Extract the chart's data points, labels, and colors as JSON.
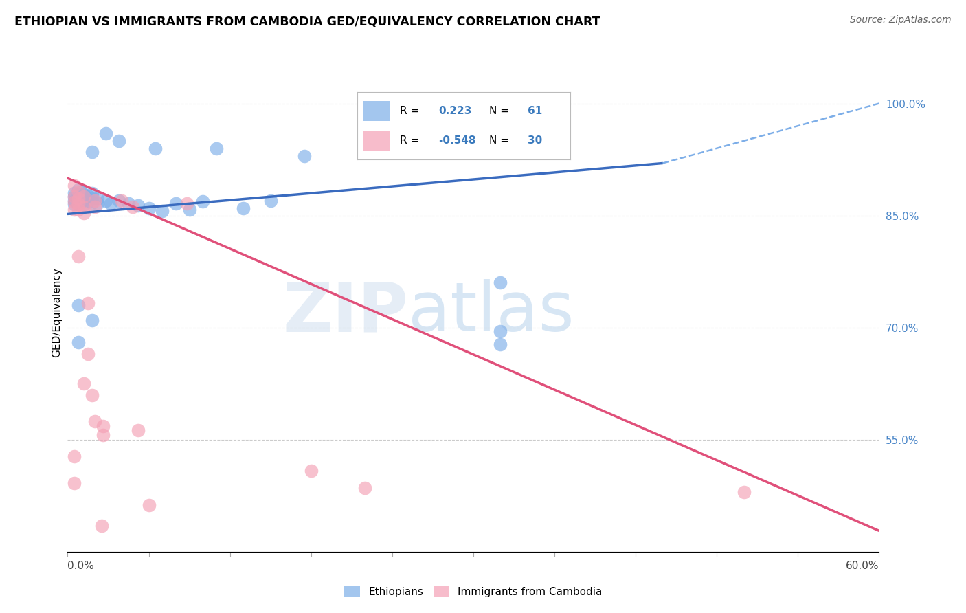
{
  "title": "ETHIOPIAN VS IMMIGRANTS FROM CAMBODIA GED/EQUIVALENCY CORRELATION CHART",
  "source": "Source: ZipAtlas.com",
  "ylabel": "GED/Equivalency",
  "ytick_labels": [
    "100.0%",
    "85.0%",
    "70.0%",
    "55.0%"
  ],
  "ytick_values": [
    1.0,
    0.85,
    0.7,
    0.55
  ],
  "xmin": 0.0,
  "xmax": 0.6,
  "ymin": 0.4,
  "ymax": 1.04,
  "blue_color": "#7daee8",
  "pink_color": "#f4a0b5",
  "blue_line_color": "#3a6bbf",
  "pink_line_color": "#e0507a",
  "dashed_line_color": "#7daee8",
  "watermark_zip": "ZIP",
  "watermark_atlas": "atlas",
  "blue_scatter": [
    [
      0.005,
      0.88
    ],
    [
      0.005,
      0.875
    ],
    [
      0.005,
      0.87
    ],
    [
      0.005,
      0.865
    ],
    [
      0.008,
      0.885
    ],
    [
      0.008,
      0.878
    ],
    [
      0.008,
      0.872
    ],
    [
      0.008,
      0.865
    ],
    [
      0.01,
      0.882
    ],
    [
      0.01,
      0.875
    ],
    [
      0.01,
      0.868
    ],
    [
      0.012,
      0.878
    ],
    [
      0.012,
      0.872
    ],
    [
      0.012,
      0.865
    ],
    [
      0.015,
      0.876
    ],
    [
      0.015,
      0.869
    ],
    [
      0.018,
      0.874
    ],
    [
      0.018,
      0.867
    ],
    [
      0.018,
      0.88
    ],
    [
      0.022,
      0.873
    ],
    [
      0.022,
      0.866
    ],
    [
      0.028,
      0.87
    ],
    [
      0.032,
      0.866
    ],
    [
      0.038,
      0.87
    ],
    [
      0.045,
      0.866
    ],
    [
      0.052,
      0.863
    ],
    [
      0.06,
      0.86
    ],
    [
      0.07,
      0.856
    ],
    [
      0.08,
      0.866
    ],
    [
      0.09,
      0.858
    ],
    [
      0.1,
      0.869
    ],
    [
      0.13,
      0.86
    ],
    [
      0.15,
      0.87
    ],
    [
      0.018,
      0.935
    ],
    [
      0.028,
      0.96
    ],
    [
      0.038,
      0.95
    ],
    [
      0.065,
      0.94
    ],
    [
      0.11,
      0.94
    ],
    [
      0.175,
      0.93
    ],
    [
      0.008,
      0.73
    ],
    [
      0.018,
      0.71
    ],
    [
      0.32,
      0.76
    ],
    [
      0.32,
      0.695
    ],
    [
      0.32,
      0.678
    ],
    [
      0.008,
      0.68
    ]
  ],
  "pink_scatter": [
    [
      0.005,
      0.89
    ],
    [
      0.005,
      0.875
    ],
    [
      0.005,
      0.868
    ],
    [
      0.005,
      0.858
    ],
    [
      0.008,
      0.882
    ],
    [
      0.008,
      0.873
    ],
    [
      0.008,
      0.865
    ],
    [
      0.008,
      0.858
    ],
    [
      0.012,
      0.875
    ],
    [
      0.012,
      0.862
    ],
    [
      0.012,
      0.853
    ],
    [
      0.02,
      0.87
    ],
    [
      0.02,
      0.862
    ],
    [
      0.04,
      0.87
    ],
    [
      0.048,
      0.862
    ],
    [
      0.088,
      0.866
    ],
    [
      0.008,
      0.795
    ],
    [
      0.015,
      0.733
    ],
    [
      0.015,
      0.665
    ],
    [
      0.018,
      0.61
    ],
    [
      0.02,
      0.575
    ],
    [
      0.026,
      0.568
    ],
    [
      0.026,
      0.556
    ],
    [
      0.052,
      0.563
    ],
    [
      0.005,
      0.528
    ],
    [
      0.005,
      0.492
    ],
    [
      0.012,
      0.625
    ],
    [
      0.18,
      0.508
    ],
    [
      0.22,
      0.485
    ],
    [
      0.06,
      0.462
    ],
    [
      0.5,
      0.48
    ],
    [
      0.025,
      0.435
    ]
  ],
  "blue_trendline_solid": [
    [
      0.0,
      0.852
    ],
    [
      0.44,
      0.92
    ]
  ],
  "blue_trendline_dashed": [
    [
      0.44,
      0.92
    ],
    [
      0.6,
      1.0
    ]
  ],
  "pink_trendline": [
    [
      0.0,
      0.9
    ],
    [
      0.6,
      0.428
    ]
  ]
}
